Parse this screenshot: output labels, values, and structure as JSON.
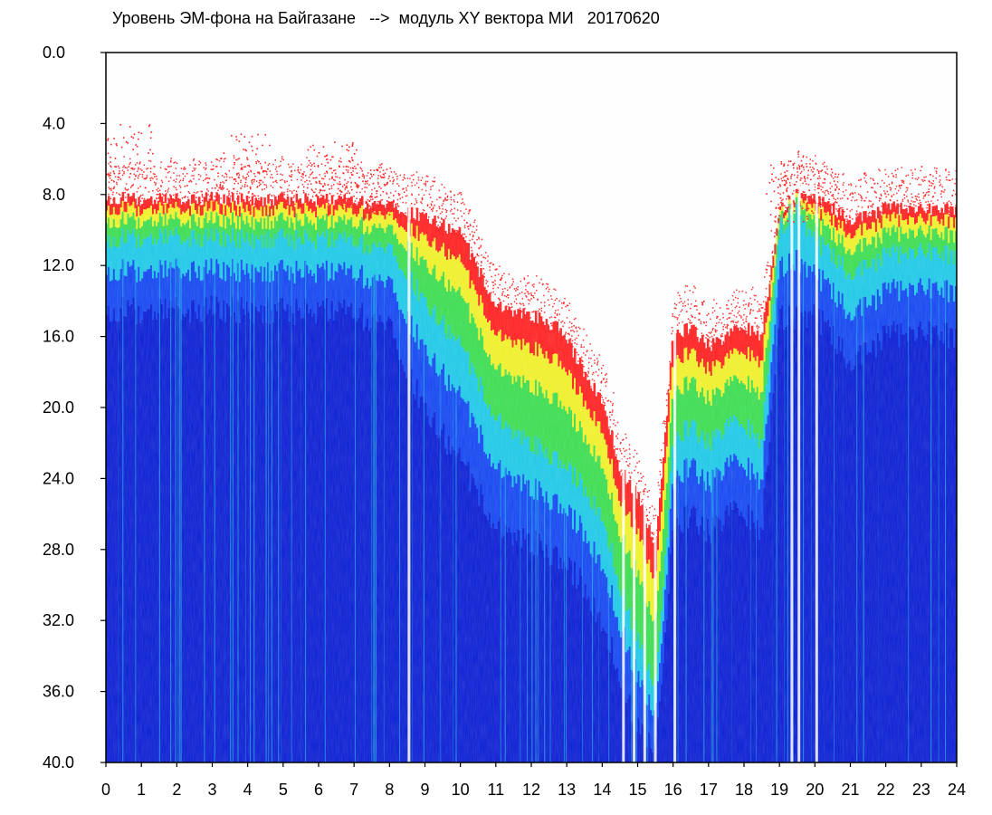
{
  "chart_data": {
    "type": "heatmap",
    "title": "Уровень ЭМ-фона на Байгазане   -->  модуль XY вектора МИ   20170620",
    "xlabel": "",
    "ylabel": "",
    "x_ticks": [
      "0",
      "1",
      "2",
      "3",
      "4",
      "5",
      "6",
      "7",
      "8",
      "9",
      "10",
      "11",
      "12",
      "13",
      "14",
      "15",
      "16",
      "17",
      "18",
      "19",
      "20",
      "21",
      "22",
      "23",
      "24"
    ],
    "y_ticks": [
      "0.0",
      "4.0",
      "8.0",
      "12.0",
      "16.0",
      "20.0",
      "24.0",
      "28.0",
      "32.0",
      "36.0",
      "40.0"
    ],
    "xlim": [
      0,
      24
    ],
    "ylim": [
      0,
      40
    ],
    "y_inverted": true,
    "grid": false,
    "colors": {
      "deep": "#0a1ed2",
      "blue": "#1446f0",
      "cyan": "#1ec8e6",
      "green": "#3cdc50",
      "yellow": "#f0f028",
      "red": "#ff2020",
      "background": "#ffffff"
    },
    "envelope": {
      "hours": [
        0,
        1,
        2,
        3,
        4,
        5,
        6,
        7,
        8,
        8.5,
        9,
        10,
        11,
        12,
        12.8,
        13.5,
        14,
        14.5,
        15,
        15.5,
        16,
        16.5,
        17,
        17.5,
        18,
        18.5,
        19,
        19.5,
        20,
        21,
        22,
        23,
        24
      ],
      "red_edge": [
        8.2,
        8.3,
        8.3,
        8.2,
        8.3,
        8.3,
        8.3,
        8.4,
        8.7,
        9.0,
        9.2,
        10.2,
        14.2,
        14.8,
        15.5,
        18.0,
        19.5,
        23.5,
        25.0,
        28.0,
        16.0,
        15.5,
        16.5,
        16.0,
        15.5,
        16.0,
        9.0,
        8.0,
        8.2,
        9.5,
        8.8,
        8.7,
        8.9
      ],
      "cyan_edge": [
        10.5,
        10.5,
        10.4,
        10.4,
        10.5,
        10.5,
        10.5,
        10.7,
        11.2,
        12.5,
        14.0,
        16.5,
        20.5,
        22.0,
        23.0,
        24.5,
        26.0,
        30.0,
        33.0,
        36.0,
        22.0,
        21.0,
        22.0,
        21.0,
        21.0,
        22.0,
        10.0,
        9.0,
        10.5,
        12.5,
        11.5,
        11.0,
        11.5
      ],
      "deep_edge": [
        14.5,
        14.6,
        14.5,
        14.4,
        14.5,
        14.6,
        14.5,
        14.7,
        15.5,
        18.0,
        20.0,
        23.0,
        26.5,
        27.5,
        28.5,
        30.0,
        32.0,
        35.0,
        38.0,
        39.5,
        27.0,
        26.0,
        27.0,
        26.0,
        26.0,
        27.0,
        15.0,
        15.0,
        14.6,
        17.5,
        16.0,
        15.5,
        16.0
      ]
    },
    "sparse_red_top": {
      "hours": [
        0.2,
        3.5,
        6.0,
        7.0,
        19.1,
        19.6
      ],
      "depth": [
        4.0,
        4.5,
        5.0,
        6.0,
        6.0,
        6.5
      ]
    },
    "gaps_white": [
      8.55,
      14.6,
      14.9,
      15.2,
      15.5,
      16.05,
      19.35,
      19.55,
      20.05
    ],
    "legend": "none"
  }
}
